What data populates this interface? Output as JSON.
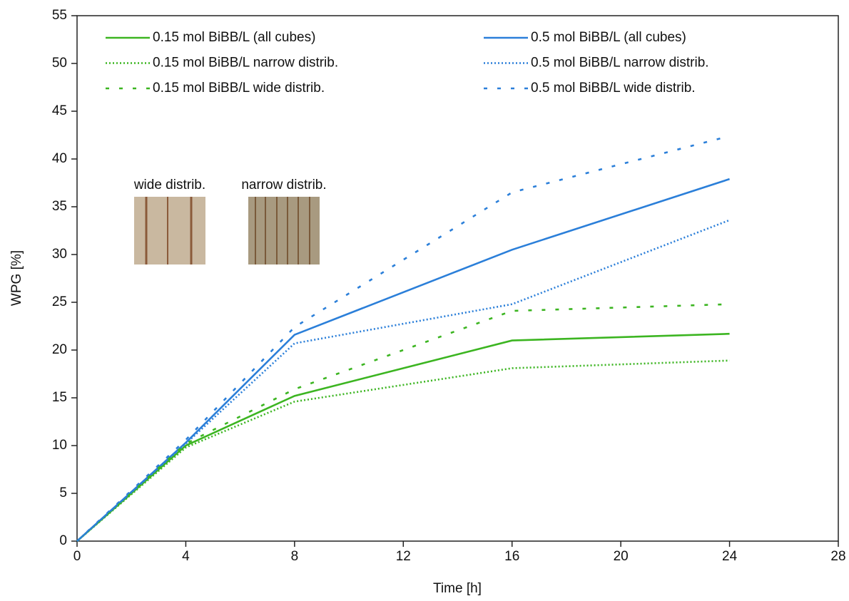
{
  "chart_data": {
    "type": "line",
    "xlabel": "Time [h]",
    "ylabel": "WPG [%]",
    "x": [
      0,
      4,
      8,
      16,
      24
    ],
    "xlim": [
      0,
      28
    ],
    "xticks": [
      0,
      4,
      8,
      12,
      16,
      20,
      24,
      28
    ],
    "ylim": [
      0,
      55
    ],
    "yticks": [
      0,
      5,
      10,
      15,
      20,
      25,
      30,
      35,
      40,
      45,
      50,
      55
    ],
    "legend": "top-left",
    "series": [
      {
        "name": "0.15 mol BiBB/L (all cubes)",
        "color": "#3cb521",
        "dash": "solid",
        "values": [
          0,
          10.0,
          15.2,
          21.0,
          21.7
        ]
      },
      {
        "name": "0.5 mol BiBB/L (all cubes)",
        "color": "#2b7fd9",
        "dash": "solid",
        "values": [
          0,
          10.3,
          21.6,
          30.5,
          37.9
        ]
      },
      {
        "name": "0.15 mol BiBB/L narrow distrib.",
        "color": "#3cb521",
        "dash": "dotted",
        "values": [
          0,
          9.8,
          14.6,
          18.1,
          18.9
        ]
      },
      {
        "name": "0.5 mol BiBB/L narrow distrib.",
        "color": "#2b7fd9",
        "dash": "dotted",
        "values": [
          0,
          10.2,
          20.7,
          24.8,
          33.6
        ]
      },
      {
        "name": "0.15 mol BiBB/L wide distrib.",
        "color": "#3cb521",
        "dash": "dashed",
        "values": [
          0,
          10.2,
          15.9,
          24.1,
          24.8
        ]
      },
      {
        "name": "0.5 mol BiBB/L wide distrib.",
        "color": "#2b7fd9",
        "dash": "dashed",
        "values": [
          0,
          10.6,
          22.4,
          36.5,
          42.4
        ]
      }
    ],
    "annotations": [
      {
        "text": "wide distrib."
      },
      {
        "text": "narrow distrib."
      }
    ]
  }
}
